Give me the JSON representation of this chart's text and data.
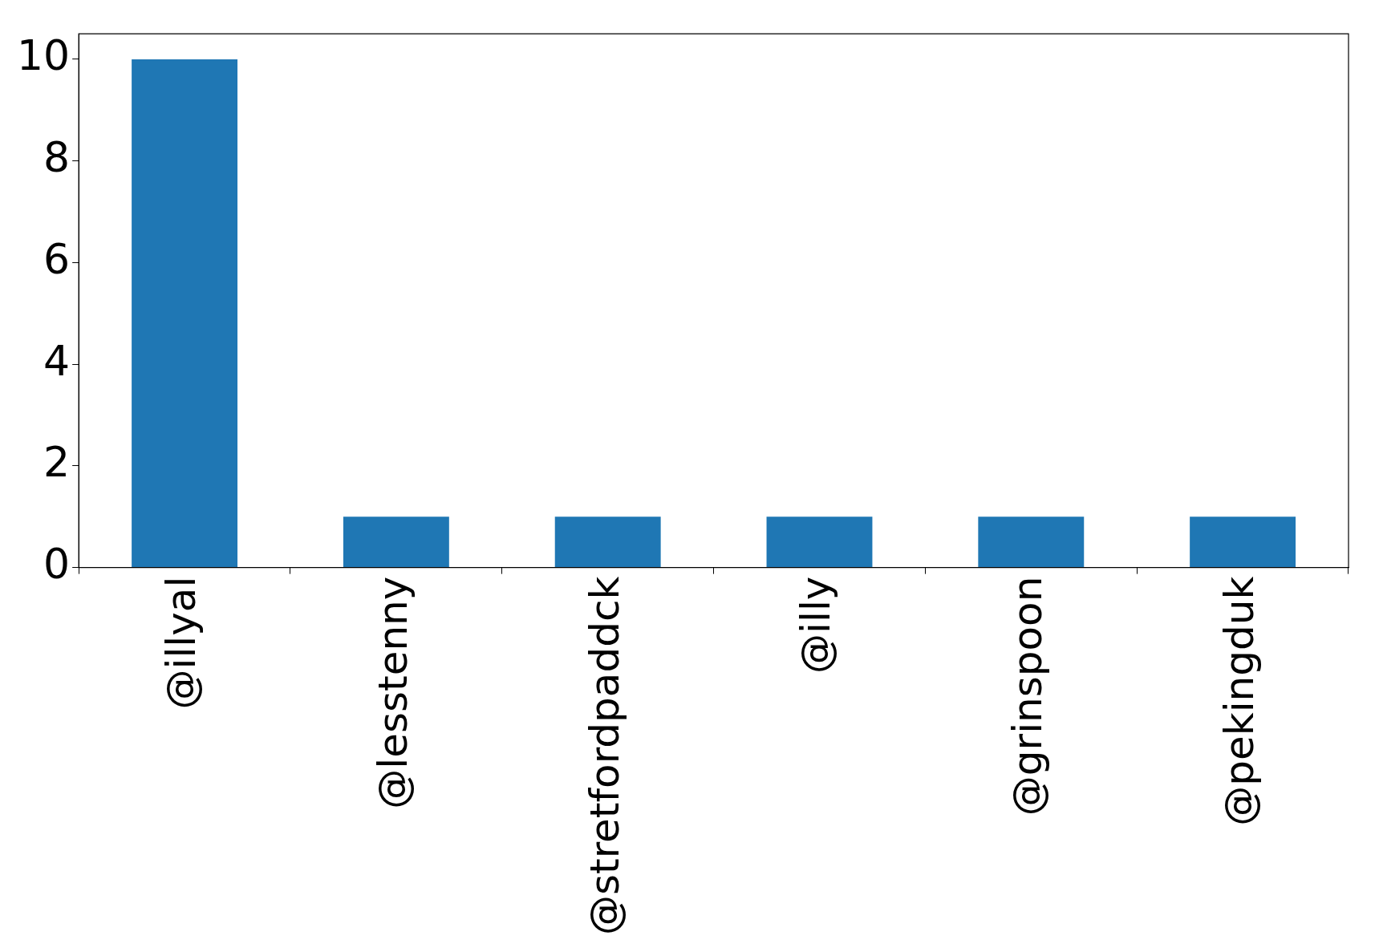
{
  "chart_data": {
    "type": "bar",
    "categories": [
      "@illyal",
      "@lesstenny",
      "@stretfordpaddck",
      "@illy",
      "@grinspoon",
      "@pekingduk"
    ],
    "values": [
      10,
      1,
      1,
      1,
      1,
      1
    ],
    "color": "#1f77b4",
    "ylim": [
      0,
      10.5
    ],
    "yticks": [
      0,
      2,
      4,
      6,
      8,
      10
    ],
    "grid": false,
    "legend": false
  }
}
